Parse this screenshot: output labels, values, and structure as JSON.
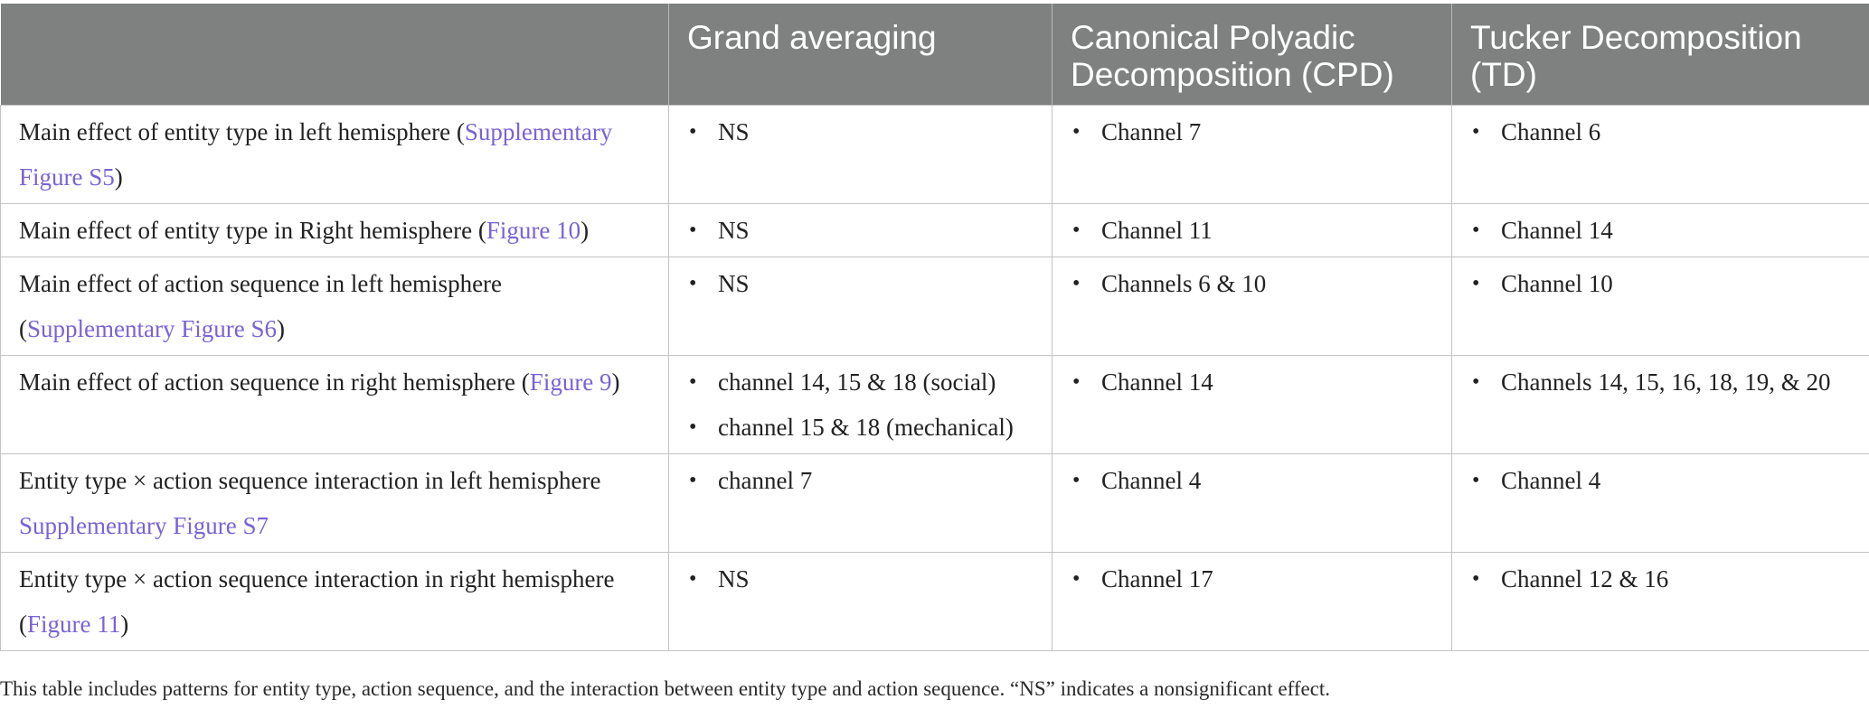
{
  "table": {
    "headers": [
      "",
      "Grand averaging",
      "Canonical Polyadic Decomposition (CPD)",
      "Tucker Decomposition (TD)"
    ],
    "rows": [
      {
        "label_text": "Main effect of entity type in left hemisphere (",
        "label_link": "Supplementary Figure S5",
        "label_after": ")",
        "grand": [
          "NS"
        ],
        "cpd": [
          "Channel 7"
        ],
        "td": [
          "Channel 6"
        ]
      },
      {
        "label_text": "Main effect of entity type in Right hemisphere (",
        "label_link": "Figure 10",
        "label_after": ")",
        "grand": [
          "NS"
        ],
        "cpd": [
          "Channel 11"
        ],
        "td": [
          "Channel 14"
        ]
      },
      {
        "label_text": "Main effect of action sequence in left hemisphere (",
        "label_link": "Supplementary Figure S6",
        "label_after": ")",
        "grand": [
          "NS"
        ],
        "cpd": [
          "Channels 6 & 10"
        ],
        "td": [
          "Channel 10"
        ]
      },
      {
        "label_text": "Main effect of action sequence in right hemisphere (",
        "label_link": "Figure 9",
        "label_after": ")",
        "grand": [
          "channel 14, 15 & 18 (social)",
          "channel 15 & 18 (mechanical)"
        ],
        "cpd": [
          "Channel 14"
        ],
        "td": [
          "Channels 14, 15, 16, 18, 19, & 20"
        ]
      },
      {
        "label_text": "Entity type × action sequence interaction in left hemisphere ",
        "label_link": "Supplementary Figure S7",
        "label_after": "",
        "grand": [
          "channel 7"
        ],
        "cpd": [
          "Channel 4"
        ],
        "td": [
          "Channel 4"
        ]
      },
      {
        "label_text": "Entity type × action sequence interaction in right hemisphere (",
        "label_link": "Figure 11",
        "label_after": ")",
        "grand": [
          "NS"
        ],
        "cpd": [
          "Channel 17"
        ],
        "td": [
          "Channel 12 & 16"
        ]
      }
    ]
  },
  "footnote": "This table includes patterns for entity type, action sequence, and the interaction between entity type and action sequence. “NS” indicates a nonsignificant effect.",
  "colors": {
    "header_bg": "#7f8180",
    "link": "#7a62d6",
    "border": "#c4c4c4"
  }
}
